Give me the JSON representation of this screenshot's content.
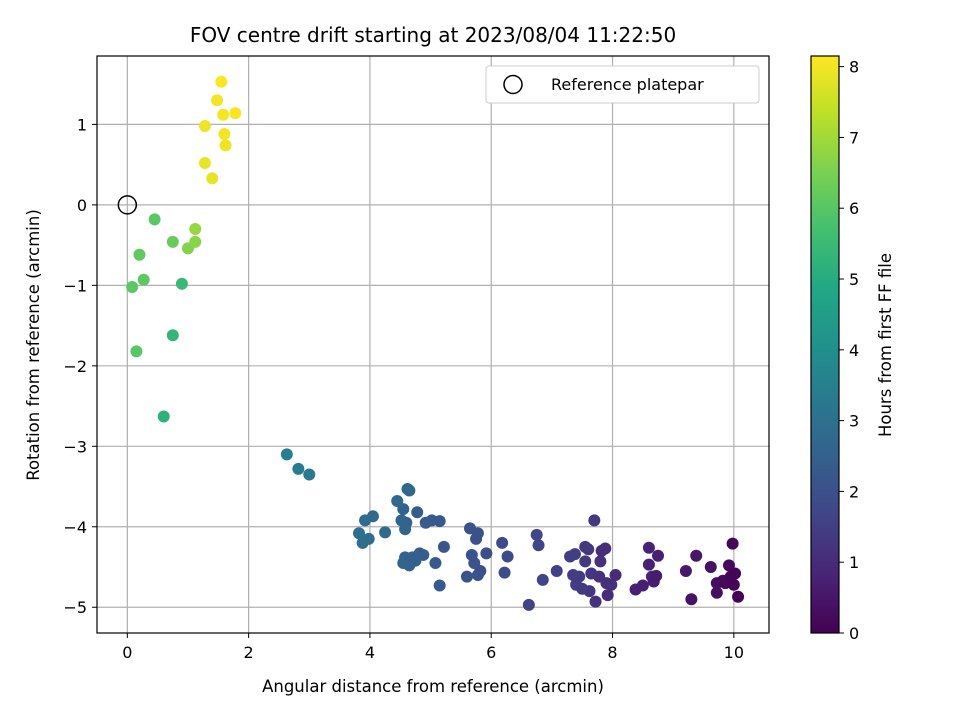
{
  "chart_data": {
    "type": "scatter",
    "title": "FOV centre drift starting at 2023/08/04 11:22:50",
    "xlabel": "Angular distance from reference (arcmin)",
    "ylabel": "Rotation from reference (arcmin)",
    "xlim": [
      -0.5,
      10.58
    ],
    "ylim": [
      -5.32,
      1.85
    ],
    "xticks": [
      0,
      2,
      4,
      6,
      8,
      10
    ],
    "yticks": [
      1,
      0,
      -1,
      -2,
      -3,
      -4,
      -5
    ],
    "xtick_labels": [
      "0",
      "2",
      "4",
      "6",
      "8",
      "10"
    ],
    "ytick_labels": [
      "1",
      "0",
      "−1",
      "−2",
      "−3",
      "−4",
      "−5"
    ],
    "grid": true,
    "legend": {
      "position": "top-right",
      "entries": [
        {
          "label": "Reference platepar",
          "marker": "open-circle"
        }
      ]
    },
    "reference_point": {
      "x": 0,
      "y": 0
    },
    "colorbar": {
      "label": "Hours from first FF file",
      "colormap": "viridis",
      "range": [
        0,
        8.15
      ],
      "ticks": [
        0,
        1,
        2,
        3,
        4,
        5,
        6,
        7,
        8
      ],
      "tick_labels": [
        "0",
        "1",
        "2",
        "3",
        "4",
        "5",
        "6",
        "7",
        "8"
      ]
    },
    "points": [
      {
        "x": 9.3,
        "y": -4.9,
        "c": 0.45
      },
      {
        "x": 9.38,
        "y": -4.36,
        "c": 0.48
      },
      {
        "x": 9.62,
        "y": -4.5,
        "c": 0.4
      },
      {
        "x": 9.72,
        "y": -4.82,
        "c": 0.35
      },
      {
        "x": 9.72,
        "y": -4.7,
        "c": 0.3
      },
      {
        "x": 9.82,
        "y": -4.67,
        "c": 0.25
      },
      {
        "x": 9.86,
        "y": -4.7,
        "c": 0.2
      },
      {
        "x": 9.92,
        "y": -4.48,
        "c": 0.22
      },
      {
        "x": 9.95,
        "y": -4.62,
        "c": 0.15
      },
      {
        "x": 9.98,
        "y": -4.21,
        "c": 0.12
      },
      {
        "x": 10.0,
        "y": -4.72,
        "c": 0.1
      },
      {
        "x": 10.02,
        "y": -4.58,
        "c": 0.08
      },
      {
        "x": 10.07,
        "y": -4.87,
        "c": 0.05
      },
      {
        "x": 9.21,
        "y": -4.55,
        "c": 0.55
      },
      {
        "x": 8.38,
        "y": -4.78,
        "c": 0.72
      },
      {
        "x": 8.5,
        "y": -4.73,
        "c": 0.7
      },
      {
        "x": 8.6,
        "y": -4.47,
        "c": 0.75
      },
      {
        "x": 8.6,
        "y": -4.26,
        "c": 0.78
      },
      {
        "x": 8.65,
        "y": -4.62,
        "c": 0.8
      },
      {
        "x": 8.68,
        "y": -4.68,
        "c": 0.68
      },
      {
        "x": 8.72,
        "y": -4.61,
        "c": 0.62
      },
      {
        "x": 8.75,
        "y": -4.36,
        "c": 0.74
      },
      {
        "x": 7.88,
        "y": -4.27,
        "c": 1.05
      },
      {
        "x": 7.9,
        "y": -4.7,
        "c": 1.1
      },
      {
        "x": 7.92,
        "y": -4.85,
        "c": 1.02
      },
      {
        "x": 7.98,
        "y": -4.72,
        "c": 1.12
      },
      {
        "x": 8.05,
        "y": -4.6,
        "c": 1.0
      },
      {
        "x": 7.8,
        "y": -4.43,
        "c": 1.15
      },
      {
        "x": 7.82,
        "y": -4.3,
        "c": 1.08
      },
      {
        "x": 7.78,
        "y": -4.62,
        "c": 1.18
      },
      {
        "x": 7.72,
        "y": -4.93,
        "c": 1.2
      },
      {
        "x": 7.7,
        "y": -3.92,
        "c": 1.35
      },
      {
        "x": 7.65,
        "y": -4.58,
        "c": 1.25
      },
      {
        "x": 7.62,
        "y": -4.8,
        "c": 1.3
      },
      {
        "x": 7.6,
        "y": -4.28,
        "c": 1.28
      },
      {
        "x": 7.55,
        "y": -4.43,
        "c": 1.32
      },
      {
        "x": 7.5,
        "y": -4.77,
        "c": 1.4
      },
      {
        "x": 7.45,
        "y": -4.62,
        "c": 1.38
      },
      {
        "x": 7.4,
        "y": -4.72,
        "c": 1.42
      },
      {
        "x": 7.38,
        "y": -4.34,
        "c": 1.45
      },
      {
        "x": 7.3,
        "y": -4.37,
        "c": 1.48
      },
      {
        "x": 7.35,
        "y": -4.6,
        "c": 1.44
      },
      {
        "x": 7.55,
        "y": -4.25,
        "c": 1.36
      },
      {
        "x": 7.08,
        "y": -4.55,
        "c": 1.55
      },
      {
        "x": 6.85,
        "y": -4.66,
        "c": 1.62
      },
      {
        "x": 6.78,
        "y": -4.23,
        "c": 1.7
      },
      {
        "x": 6.75,
        "y": -4.1,
        "c": 1.72
      },
      {
        "x": 6.62,
        "y": -4.97,
        "c": 1.6
      },
      {
        "x": 6.27,
        "y": -4.37,
        "c": 1.85
      },
      {
        "x": 6.22,
        "y": -4.57,
        "c": 1.9
      },
      {
        "x": 6.18,
        "y": -4.2,
        "c": 1.88
      },
      {
        "x": 5.92,
        "y": -4.33,
        "c": 1.95
      },
      {
        "x": 5.82,
        "y": -4.55,
        "c": 2.0
      },
      {
        "x": 5.78,
        "y": -4.6,
        "c": 2.02
      },
      {
        "x": 5.75,
        "y": -4.15,
        "c": 1.98
      },
      {
        "x": 5.72,
        "y": -4.45,
        "c": 2.05
      },
      {
        "x": 5.68,
        "y": -4.35,
        "c": 2.08
      },
      {
        "x": 5.65,
        "y": -4.02,
        "c": 2.1
      },
      {
        "x": 5.6,
        "y": -4.62,
        "c": 2.12
      },
      {
        "x": 5.78,
        "y": -4.08,
        "c": 2.03
      },
      {
        "x": 5.22,
        "y": -4.25,
        "c": 2.2
      },
      {
        "x": 5.15,
        "y": -4.73,
        "c": 2.25
      },
      {
        "x": 5.15,
        "y": -3.93,
        "c": 2.28
      },
      {
        "x": 5.08,
        "y": -4.45,
        "c": 2.3
      },
      {
        "x": 5.02,
        "y": -3.92,
        "c": 2.32
      },
      {
        "x": 4.92,
        "y": -3.95,
        "c": 2.35
      },
      {
        "x": 4.88,
        "y": -4.35,
        "c": 2.38
      },
      {
        "x": 4.82,
        "y": -4.33,
        "c": 2.4
      },
      {
        "x": 4.78,
        "y": -3.82,
        "c": 2.42
      },
      {
        "x": 4.75,
        "y": -4.42,
        "c": 2.45
      },
      {
        "x": 4.7,
        "y": -4.38,
        "c": 2.48
      },
      {
        "x": 4.65,
        "y": -4.48,
        "c": 2.5
      },
      {
        "x": 4.62,
        "y": -3.53,
        "c": 2.7
      },
      {
        "x": 4.6,
        "y": -3.95,
        "c": 2.55
      },
      {
        "x": 4.58,
        "y": -4.38,
        "c": 2.52
      },
      {
        "x": 4.55,
        "y": -3.78,
        "c": 2.58
      },
      {
        "x": 4.55,
        "y": -4.45,
        "c": 2.6
      },
      {
        "x": 4.52,
        "y": -3.92,
        "c": 2.62
      },
      {
        "x": 4.58,
        "y": -4.03,
        "c": 2.65
      },
      {
        "x": 4.65,
        "y": -3.55,
        "c": 2.72
      },
      {
        "x": 4.45,
        "y": -3.68,
        "c": 2.75
      },
      {
        "x": 4.25,
        "y": -4.07,
        "c": 2.8
      },
      {
        "x": 4.05,
        "y": -3.87,
        "c": 2.85
      },
      {
        "x": 3.98,
        "y": -4.15,
        "c": 2.88
      },
      {
        "x": 3.92,
        "y": -3.92,
        "c": 2.9
      },
      {
        "x": 3.88,
        "y": -4.2,
        "c": 2.92
      },
      {
        "x": 3.82,
        "y": -4.08,
        "c": 2.95
      },
      {
        "x": 3.0,
        "y": -3.35,
        "c": 3.3
      },
      {
        "x": 2.82,
        "y": -3.28,
        "c": 3.4
      },
      {
        "x": 2.63,
        "y": -3.1,
        "c": 3.55
      },
      {
        "x": 0.6,
        "y": -2.63,
        "c": 5.2
      },
      {
        "x": 0.75,
        "y": -1.62,
        "c": 5.35
      },
      {
        "x": 0.9,
        "y": -0.98,
        "c": 5.45
      },
      {
        "x": 0.15,
        "y": -1.82,
        "c": 6.0
      },
      {
        "x": 0.08,
        "y": -1.02,
        "c": 6.05
      },
      {
        "x": 0.27,
        "y": -0.93,
        "c": 6.1
      },
      {
        "x": 0.2,
        "y": -0.62,
        "c": 6.15
      },
      {
        "x": 0.45,
        "y": -0.18,
        "c": 6.05
      },
      {
        "x": 0.75,
        "y": -0.46,
        "c": 6.25
      },
      {
        "x": 1.0,
        "y": -0.54,
        "c": 6.6
      },
      {
        "x": 1.12,
        "y": -0.46,
        "c": 6.7
      },
      {
        "x": 1.12,
        "y": -0.3,
        "c": 6.85
      },
      {
        "x": 1.28,
        "y": 0.52,
        "c": 7.9
      },
      {
        "x": 1.4,
        "y": 0.33,
        "c": 7.85
      },
      {
        "x": 1.28,
        "y": 0.98,
        "c": 7.95
      },
      {
        "x": 1.48,
        "y": 1.3,
        "c": 8.0
      },
      {
        "x": 1.55,
        "y": 1.53,
        "c": 8.1
      },
      {
        "x": 1.58,
        "y": 1.12,
        "c": 8.05
      },
      {
        "x": 1.6,
        "y": 0.88,
        "c": 8.0
      },
      {
        "x": 1.62,
        "y": 0.74,
        "c": 7.98
      },
      {
        "x": 1.78,
        "y": 1.14,
        "c": 8.08
      }
    ]
  }
}
